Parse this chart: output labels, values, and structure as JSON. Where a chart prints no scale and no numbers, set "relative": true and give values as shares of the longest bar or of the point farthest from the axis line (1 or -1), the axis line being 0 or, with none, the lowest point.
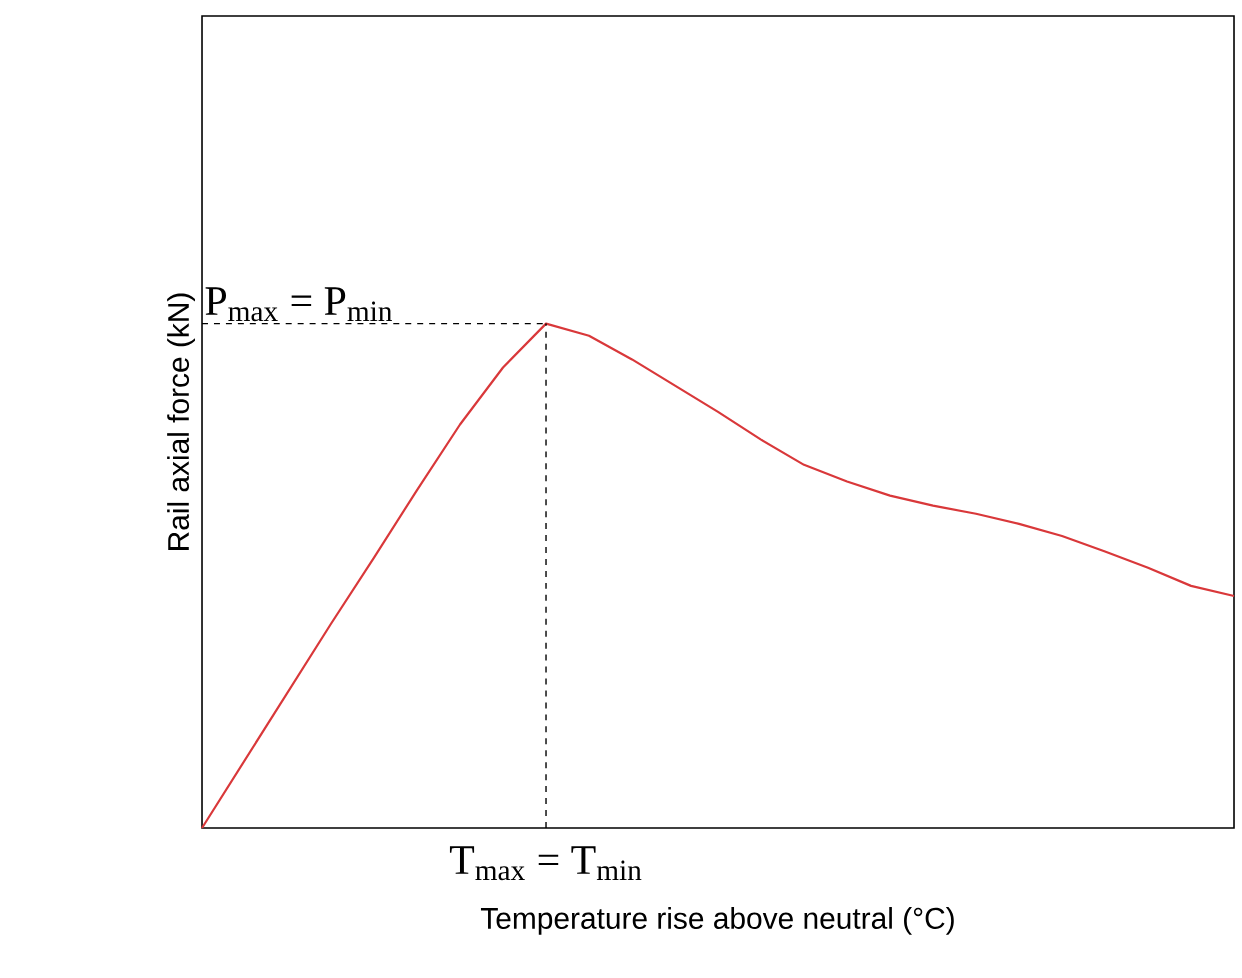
{
  "chart_data": {
    "type": "line",
    "relative": true,
    "xlabel": "Temperature rise above neutral (°C)",
    "ylabel": "Rail axial force (kN)",
    "categories": [
      null,
      null,
      null,
      null,
      null,
      null,
      null,
      null,
      null,
      null,
      null,
      null,
      null,
      null,
      null,
      null,
      null,
      null,
      null,
      null,
      null,
      null,
      null,
      null,
      null
    ],
    "series": [
      {
        "color": "#d9383a",
        "values": [
          0,
          0.135,
          0.27,
          0.405,
          0.536,
          0.67,
          0.8,
          0.913,
          1.0,
          0.976,
          0.929,
          0.877,
          0.825,
          0.77,
          0.72,
          0.687,
          0.659,
          0.639,
          0.623,
          0.603,
          0.579,
          0.548,
          0.516,
          0.48,
          0.46
        ]
      }
    ],
    "annotations": [
      "P$_{max}$ = P$_{min}$",
      "T$_{max}$ = T$_{min}$"
    ]
  }
}
